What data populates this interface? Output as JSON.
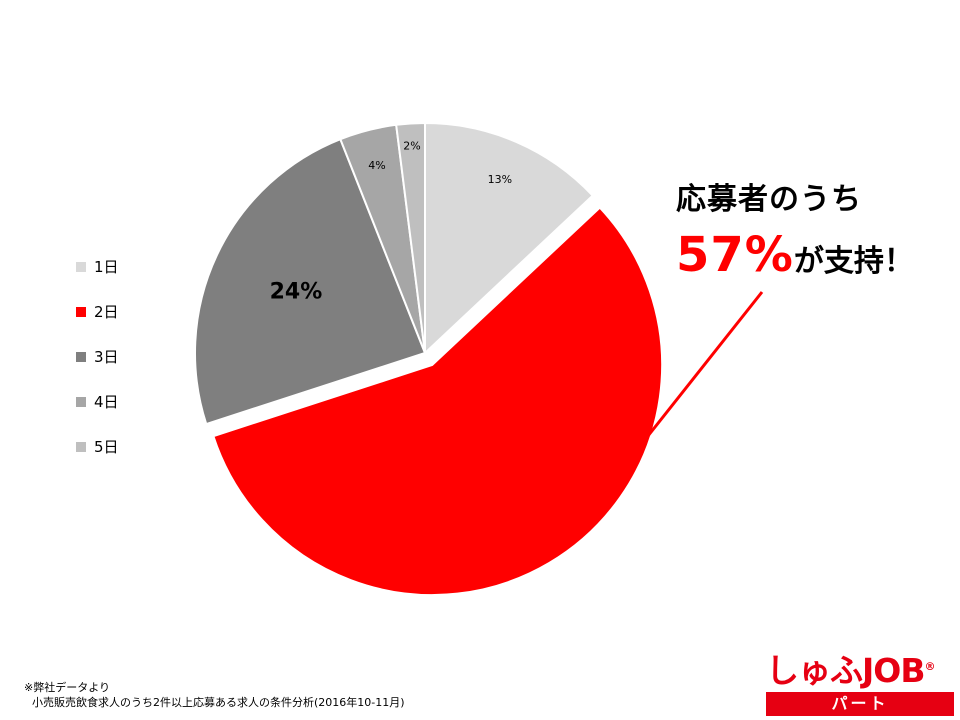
{
  "chart_data": {
    "type": "pie",
    "categories": [
      "1日",
      "2日",
      "3日",
      "4日",
      "5日"
    ],
    "values": [
      13,
      57,
      24,
      4,
      2
    ],
    "data_labels": [
      "13%",
      "",
      "24%",
      "4%",
      "2%"
    ],
    "colors": [
      "#d9d9d9",
      "#ff0000",
      "#7f7f7f",
      "#a6a6a6",
      "#bfbfbf"
    ],
    "exploded_slice": "2日",
    "legend_position": "left"
  },
  "callout": {
    "line1": "応募者のうち",
    "percent": "57%",
    "line2_suffix": "が支持！"
  },
  "footnote": {
    "line1": "※弊社データより",
    "line2": "小売販売飲食求人のうち2件以上応募ある求人の条件分析(2016年10-11月)"
  },
  "logo": {
    "wordmark": "しゅふJOB",
    "mark": "®",
    "tagline": "パート"
  }
}
